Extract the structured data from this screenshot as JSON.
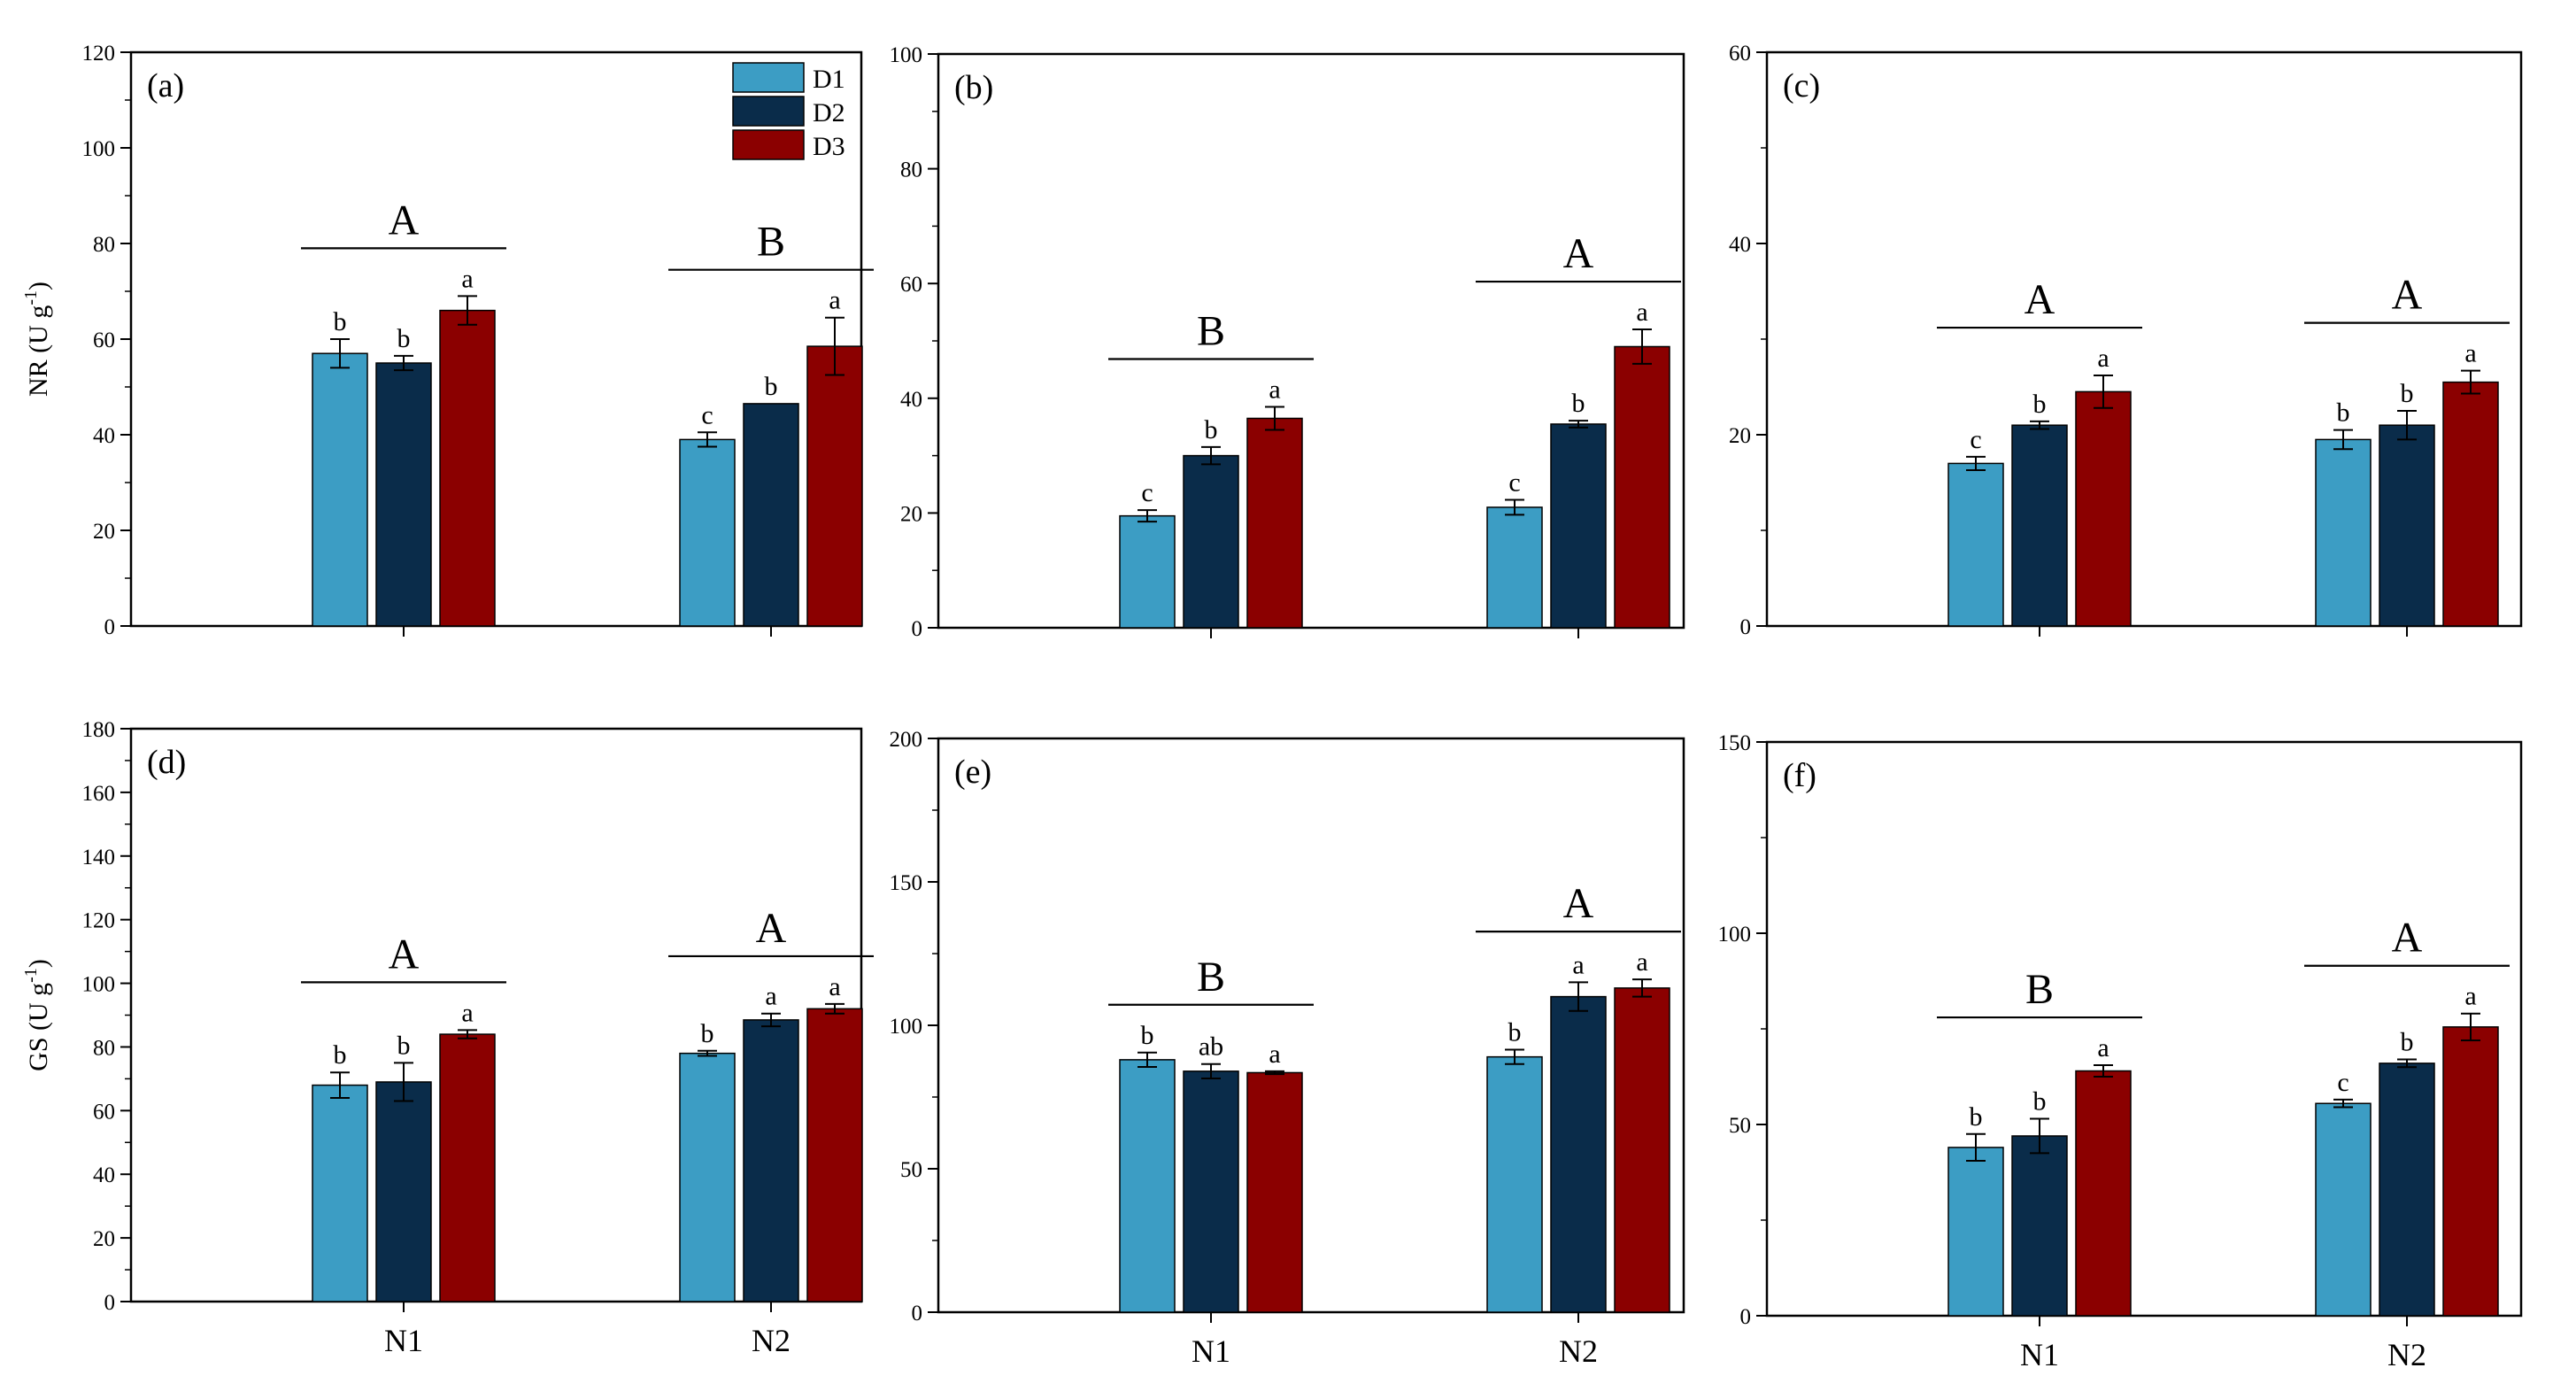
{
  "colors": {
    "D1": "#3c9dc4",
    "D2": "#0a2c4a",
    "D3": "#8b0000"
  },
  "legend": [
    "D1",
    "D2",
    "D3"
  ],
  "chart_data": [
    {
      "panel": "(a)",
      "type": "bar",
      "ylabel": "NR (U g-1)",
      "ylim": [
        0,
        120
      ],
      "yticks": [
        0,
        20,
        40,
        60,
        80,
        100,
        120
      ],
      "categories": [
        "N1",
        "N2"
      ],
      "show_xlabels": false,
      "series": [
        {
          "name": "D1",
          "values": [
            57,
            39
          ],
          "errors": [
            3,
            1.5
          ],
          "letters": [
            "b",
            "c"
          ]
        },
        {
          "name": "D2",
          "values": [
            55,
            46.5
          ],
          "errors": [
            1.5,
            0
          ],
          "letters": [
            "b",
            "b"
          ]
        },
        {
          "name": "D3",
          "values": [
            66,
            58.5
          ],
          "errors": [
            3,
            6
          ],
          "letters": [
            "a",
            "a"
          ]
        }
      ],
      "group_letters": [
        "A",
        "B"
      ]
    },
    {
      "panel": "(b)",
      "type": "bar",
      "ylabel": "",
      "ylim": [
        0,
        100
      ],
      "yticks": [
        0,
        20,
        40,
        60,
        80,
        100
      ],
      "categories": [
        "N1",
        "N2"
      ],
      "show_xlabels": false,
      "series": [
        {
          "name": "D1",
          "values": [
            19.5,
            21
          ],
          "errors": [
            1,
            1.3
          ],
          "letters": [
            "c",
            "c"
          ]
        },
        {
          "name": "D2",
          "values": [
            30,
            35.5
          ],
          "errors": [
            1.5,
            0.6
          ],
          "letters": [
            "b",
            "b"
          ]
        },
        {
          "name": "D3",
          "values": [
            36.5,
            49
          ],
          "errors": [
            2,
            3
          ],
          "letters": [
            "a",
            "a"
          ]
        }
      ],
      "group_letters": [
        "B",
        "A"
      ]
    },
    {
      "panel": "(c)",
      "type": "bar",
      "ylabel": "",
      "ylim": [
        0,
        60
      ],
      "yticks": [
        0,
        20,
        40,
        60
      ],
      "categories": [
        "N1",
        "N2"
      ],
      "show_xlabels": false,
      "series": [
        {
          "name": "D1",
          "values": [
            17,
            19.5
          ],
          "errors": [
            0.7,
            1
          ],
          "letters": [
            "c",
            "b"
          ]
        },
        {
          "name": "D2",
          "values": [
            21,
            21
          ],
          "errors": [
            0.4,
            1.5
          ],
          "letters": [
            "b",
            "b"
          ]
        },
        {
          "name": "D3",
          "values": [
            24.5,
            25.5
          ],
          "errors": [
            1.7,
            1.2
          ],
          "letters": [
            "a",
            "a"
          ]
        }
      ],
      "group_letters": [
        "A",
        "A"
      ]
    },
    {
      "panel": "(d)",
      "type": "bar",
      "ylabel": "GS (U g-1)",
      "ylim": [
        0,
        180
      ],
      "yticks": [
        0,
        20,
        40,
        60,
        80,
        100,
        120,
        140,
        160,
        180
      ],
      "categories": [
        "N1",
        "N2"
      ],
      "show_xlabels": true,
      "series": [
        {
          "name": "D1",
          "values": [
            68,
            78
          ],
          "errors": [
            4,
            0.8
          ],
          "letters": [
            "b",
            "b"
          ]
        },
        {
          "name": "D2",
          "values": [
            69,
            88.5
          ],
          "errors": [
            6,
            2
          ],
          "letters": [
            "b",
            "a"
          ]
        },
        {
          "name": "D3",
          "values": [
            84,
            92
          ],
          "errors": [
            1.3,
            1.5
          ],
          "letters": [
            "a",
            "a"
          ]
        }
      ],
      "group_letters": [
        "A",
        "A"
      ]
    },
    {
      "panel": "(e)",
      "type": "bar",
      "ylabel": "",
      "ylim": [
        0,
        200
      ],
      "yticks": [
        0,
        50,
        100,
        150,
        200
      ],
      "categories": [
        "N1",
        "N2"
      ],
      "show_xlabels": true,
      "series": [
        {
          "name": "D1",
          "values": [
            88,
            89
          ],
          "errors": [
            2.5,
            2.5
          ],
          "letters": [
            "b",
            "b"
          ]
        },
        {
          "name": "D2",
          "values": [
            84,
            110
          ],
          "errors": [
            2.5,
            5
          ],
          "letters": [
            "ab",
            "a"
          ]
        },
        {
          "name": "D3",
          "values": [
            83.5,
            113
          ],
          "errors": [
            0.5,
            3
          ],
          "letters": [
            "a",
            "a"
          ]
        }
      ],
      "group_letters": [
        "B",
        "A"
      ]
    },
    {
      "panel": "(f)",
      "type": "bar",
      "ylabel": "",
      "ylim": [
        0,
        150
      ],
      "yticks": [
        0,
        50,
        100,
        150
      ],
      "categories": [
        "N1",
        "N2"
      ],
      "show_xlabels": true,
      "series": [
        {
          "name": "D1",
          "values": [
            44,
            55.5
          ],
          "errors": [
            3.5,
            1
          ],
          "letters": [
            "b",
            "c"
          ]
        },
        {
          "name": "D2",
          "values": [
            47,
            66
          ],
          "errors": [
            4.5,
            1
          ],
          "letters": [
            "b",
            "b"
          ]
        },
        {
          "name": "D3",
          "values": [
            64,
            75.5
          ],
          "errors": [
            1.5,
            3.5
          ],
          "letters": [
            "a",
            "a"
          ]
        }
      ],
      "group_letters": [
        "B",
        "A"
      ]
    }
  ]
}
